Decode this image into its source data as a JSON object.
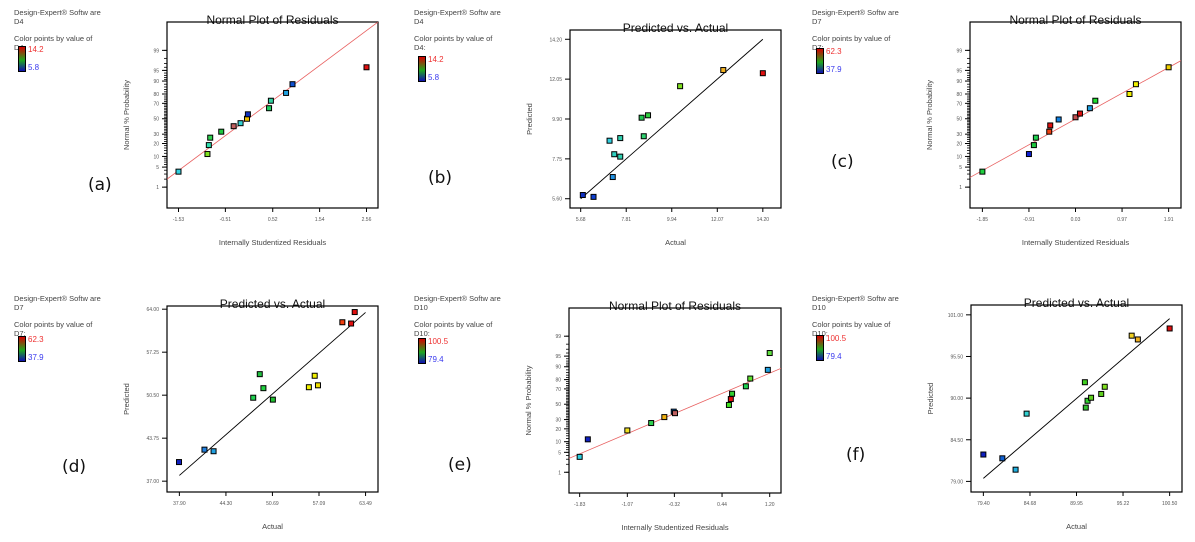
{
  "software_label": "Design-Expert® Softw are",
  "color_points_label": "Color points by value of",
  "chart_data": [
    {
      "id": "a",
      "panel_label": "(a)",
      "type": "scatter",
      "title": "Normal Plot of Residuals",
      "xlabel": "Internally Studentized Residuals",
      "ylabel": "Normal % Probability",
      "response": "D4",
      "legend": {
        "high": "14.2",
        "low": "5.8"
      },
      "scale": "probability",
      "x_ticks": [
        "-1.53",
        "-0.51",
        "0.52",
        "1.54",
        "2.56"
      ],
      "xlim": [
        -1.78,
        2.81
      ],
      "y_ticks": [
        "1",
        "5",
        "10",
        "20",
        "30",
        "50",
        "70",
        "80",
        "90",
        "95",
        "99"
      ],
      "fit_line": {
        "x": [
          -1.78,
          2.81
        ],
        "y": [
          2.0,
          99.95
        ],
        "color": "#e86060"
      },
      "points": [
        {
          "x": -1.53,
          "y": 3.6,
          "color": "#30d0e0"
        },
        {
          "x": -0.9,
          "y": 11.5,
          "color": "#80e020"
        },
        {
          "x": -0.87,
          "y": 18.5,
          "color": "#30e0b0"
        },
        {
          "x": -0.84,
          "y": 26,
          "color": "#30d050"
        },
        {
          "x": -0.6,
          "y": 33,
          "color": "#20c840"
        },
        {
          "x": -0.33,
          "y": 40,
          "color": "#c06060"
        },
        {
          "x": -0.18,
          "y": 44,
          "color": "#30d0d0"
        },
        {
          "x": -0.04,
          "y": 50,
          "color": "#f0c000"
        },
        {
          "x": -0.02,
          "y": 56,
          "color": "#1030c0"
        },
        {
          "x": 0.44,
          "y": 64,
          "color": "#20d060"
        },
        {
          "x": 0.48,
          "y": 73,
          "color": "#30d0a0"
        },
        {
          "x": 0.81,
          "y": 81,
          "color": "#20a0e0"
        },
        {
          "x": 0.95,
          "y": 88,
          "color": "#1050d0"
        },
        {
          "x": 2.56,
          "y": 96,
          "color": "#e01010"
        }
      ]
    },
    {
      "id": "b",
      "panel_label": "(b)",
      "type": "scatter",
      "title": "Predicted vs. Actual",
      "xlabel": "Actual",
      "ylabel": "Predicted",
      "response": "D4",
      "legend": {
        "high": "14.2",
        "low": "5.8"
      },
      "scale": "linear",
      "x_ticks": [
        "5.68",
        "7.81",
        "9.94",
        "12.07",
        "14.20"
      ],
      "xlim": [
        5.18,
        15.05
      ],
      "y_ticks": [
        "5.60",
        "7.75",
        "9.90",
        "12.05",
        "14.20"
      ],
      "ylim": [
        5.1,
        14.7
      ],
      "fit_line": {
        "x": [
          5.68,
          14.2
        ],
        "y": [
          5.6,
          14.2
        ],
        "color": "#000000"
      },
      "points": [
        {
          "x": 5.78,
          "y": 5.8,
          "color": "#1030c0"
        },
        {
          "x": 6.28,
          "y": 5.7,
          "color": "#1040d0"
        },
        {
          "x": 7.18,
          "y": 6.77,
          "color": "#2090e0"
        },
        {
          "x": 7.03,
          "y": 8.73,
          "color": "#30d0e0"
        },
        {
          "x": 7.25,
          "y": 8.0,
          "color": "#30d0c0"
        },
        {
          "x": 7.53,
          "y": 8.87,
          "color": "#30d0b0"
        },
        {
          "x": 7.53,
          "y": 7.87,
          "color": "#30d0b0"
        },
        {
          "x": 8.53,
          "y": 9.97,
          "color": "#20c850"
        },
        {
          "x": 8.83,
          "y": 10.1,
          "color": "#30d040"
        },
        {
          "x": 8.63,
          "y": 8.97,
          "color": "#30d070"
        },
        {
          "x": 10.33,
          "y": 11.67,
          "color": "#80e020"
        },
        {
          "x": 12.35,
          "y": 12.54,
          "color": "#f0b020"
        },
        {
          "x": 14.2,
          "y": 12.37,
          "color": "#e01010"
        }
      ]
    },
    {
      "id": "c",
      "panel_label": "(c)",
      "type": "scatter",
      "title": "Normal Plot of Residuals",
      "xlabel": "Internally Studentized Residuals",
      "ylabel": "Normal % Probability",
      "response": "D7",
      "legend": {
        "high": "62.3",
        "low": "37.9"
      },
      "scale": "probability",
      "x_ticks": [
        "-1.85",
        "-0.91",
        "0.03",
        "0.97",
        "1.91"
      ],
      "xlim": [
        -2.1,
        2.16
      ],
      "y_ticks": [
        "1",
        "5",
        "10",
        "20",
        "30",
        "50",
        "70",
        "80",
        "90",
        "95",
        "99"
      ],
      "fit_line": {
        "x": [
          -2.1,
          2.16
        ],
        "y": [
          2.3,
          97.6
        ],
        "color": "#e86060"
      },
      "points": [
        {
          "x": -1.85,
          "y": 3.6,
          "color": "#20d040"
        },
        {
          "x": -0.91,
          "y": 11.5,
          "color": "#1020d0"
        },
        {
          "x": -0.81,
          "y": 18.5,
          "color": "#20c840"
        },
        {
          "x": -0.77,
          "y": 26,
          "color": "#20d050"
        },
        {
          "x": -0.5,
          "y": 33,
          "color": "#f04010"
        },
        {
          "x": -0.48,
          "y": 41,
          "color": "#e01010"
        },
        {
          "x": -0.31,
          "y": 49,
          "color": "#1080e0"
        },
        {
          "x": 0.03,
          "y": 52,
          "color": "#c05050"
        },
        {
          "x": 0.12,
          "y": 57,
          "color": "#e01010"
        },
        {
          "x": 0.32,
          "y": 64,
          "color": "#20a0e0"
        },
        {
          "x": 0.43,
          "y": 73,
          "color": "#20e030"
        },
        {
          "x": 1.12,
          "y": 80,
          "color": "#f0f000"
        },
        {
          "x": 1.25,
          "y": 88,
          "color": "#f0f000"
        },
        {
          "x": 1.91,
          "y": 96,
          "color": "#f0d000"
        }
      ]
    },
    {
      "id": "d",
      "panel_label": "(d)",
      "type": "scatter",
      "title": "Predicted vs. Actual",
      "xlabel": "Actual",
      "ylabel": "Predicted",
      "response": "D7",
      "legend": {
        "high": "62.3",
        "low": "37.9"
      },
      "scale": "linear",
      "x_ticks": [
        "37.90",
        "44.30",
        "50.69",
        "57.09",
        "63.49"
      ],
      "xlim": [
        36.2,
        65.2
      ],
      "y_ticks": [
        "37.00",
        "43.75",
        "50.50",
        "57.25",
        "64.00"
      ],
      "ylim": [
        35.3,
        64.5
      ],
      "fit_line": {
        "x": [
          37.9,
          63.49
        ],
        "y": [
          37.9,
          63.49
        ],
        "color": "#000000"
      },
      "points": [
        {
          "x": 37.85,
          "y": 40.0,
          "color": "#1020c0"
        },
        {
          "x": 41.35,
          "y": 41.95,
          "color": "#2080e0"
        },
        {
          "x": 42.6,
          "y": 41.7,
          "color": "#20a0e0"
        },
        {
          "x": 48.05,
          "y": 50.1,
          "color": "#20d050"
        },
        {
          "x": 48.95,
          "y": 53.8,
          "color": "#20c040"
        },
        {
          "x": 49.45,
          "y": 51.6,
          "color": "#20d040"
        },
        {
          "x": 50.75,
          "y": 49.8,
          "color": "#20c030"
        },
        {
          "x": 55.7,
          "y": 51.75,
          "color": "#f0f000"
        },
        {
          "x": 56.5,
          "y": 53.55,
          "color": "#f0f000"
        },
        {
          "x": 56.95,
          "y": 52.05,
          "color": "#f0e000"
        },
        {
          "x": 60.3,
          "y": 61.95,
          "color": "#f04010"
        },
        {
          "x": 61.5,
          "y": 61.75,
          "color": "#e01010"
        },
        {
          "x": 62.0,
          "y": 63.55,
          "color": "#e01010"
        }
      ]
    },
    {
      "id": "e",
      "panel_label": "(e)",
      "type": "scatter",
      "title": "Normal Plot of Residuals",
      "xlabel": "Internally Studentized Residuals",
      "ylabel": "Normal % Probability",
      "response": "D10",
      "legend": {
        "high": "100.5",
        "low": "79.4"
      },
      "scale": "probability",
      "x_ticks": [
        "-1.83",
        "-1.07",
        "-0.32",
        "0.44",
        "1.20"
      ],
      "xlim": [
        -2.0,
        1.38
      ],
      "y_ticks": [
        "1",
        "5",
        "10",
        "20",
        "30",
        "50",
        "70",
        "80",
        "90",
        "95",
        "99"
      ],
      "fit_line": {
        "x": [
          -2.0,
          1.38
        ],
        "y": [
          3.2,
          89.0
        ],
        "color": "#e86060"
      },
      "points": [
        {
          "x": -1.83,
          "y": 3.6,
          "color": "#30d0e0"
        },
        {
          "x": -1.7,
          "y": 11.5,
          "color": "#1020c0"
        },
        {
          "x": -1.07,
          "y": 18.5,
          "color": "#f0e020"
        },
        {
          "x": -0.69,
          "y": 26,
          "color": "#30d050"
        },
        {
          "x": -0.48,
          "y": 33,
          "color": "#f0b010"
        },
        {
          "x": -0.33,
          "y": 40,
          "color": "#1070d0"
        },
        {
          "x": -0.31,
          "y": 38,
          "color": "#c06060"
        },
        {
          "x": 0.55,
          "y": 49,
          "color": "#40e020"
        },
        {
          "x": 0.58,
          "y": 57,
          "color": "#e01010"
        },
        {
          "x": 0.6,
          "y": 64,
          "color": "#30d030"
        },
        {
          "x": 0.82,
          "y": 73,
          "color": "#20d050"
        },
        {
          "x": 0.89,
          "y": 81,
          "color": "#60e030"
        },
        {
          "x": 1.17,
          "y": 88,
          "color": "#20a0e0"
        },
        {
          "x": 1.2,
          "y": 96,
          "color": "#60e040"
        }
      ]
    },
    {
      "id": "f",
      "panel_label": "(f)",
      "type": "scatter",
      "title": "Predicted vs. Actual",
      "xlabel": "Actual",
      "ylabel": "Predicted",
      "response": "D10",
      "legend": {
        "high": "100.5",
        "low": "79.4"
      },
      "scale": "linear",
      "x_ticks": [
        "79.40",
        "84.68",
        "89.95",
        "95.22",
        "100.50"
      ],
      "xlim": [
        78.0,
        101.9
      ],
      "y_ticks": [
        "79.00",
        "84.50",
        "90.00",
        "95.50",
        "101.00"
      ],
      "ylim": [
        77.6,
        102.3
      ],
      "fit_line": {
        "x": [
          79.4,
          100.5
        ],
        "y": [
          79.4,
          100.5
        ],
        "color": "#000000"
      },
      "points": [
        {
          "x": 79.4,
          "y": 82.55,
          "color": "#1020c0"
        },
        {
          "x": 81.55,
          "y": 82.05,
          "color": "#1060d0"
        },
        {
          "x": 83.05,
          "y": 80.55,
          "color": "#20b0e0"
        },
        {
          "x": 84.3,
          "y": 87.95,
          "color": "#30d0d0"
        },
        {
          "x": 90.9,
          "y": 92.1,
          "color": "#40d020"
        },
        {
          "x": 91.0,
          "y": 88.75,
          "color": "#30c030"
        },
        {
          "x": 91.2,
          "y": 89.65,
          "color": "#30d030"
        },
        {
          "x": 91.6,
          "y": 90.05,
          "color": "#60d020"
        },
        {
          "x": 92.75,
          "y": 90.55,
          "color": "#60d020"
        },
        {
          "x": 93.15,
          "y": 91.5,
          "color": "#80e020"
        },
        {
          "x": 96.2,
          "y": 98.25,
          "color": "#f0d020"
        },
        {
          "x": 96.9,
          "y": 97.75,
          "color": "#f0b020"
        },
        {
          "x": 100.5,
          "y": 99.2,
          "color": "#e01010"
        }
      ]
    }
  ]
}
